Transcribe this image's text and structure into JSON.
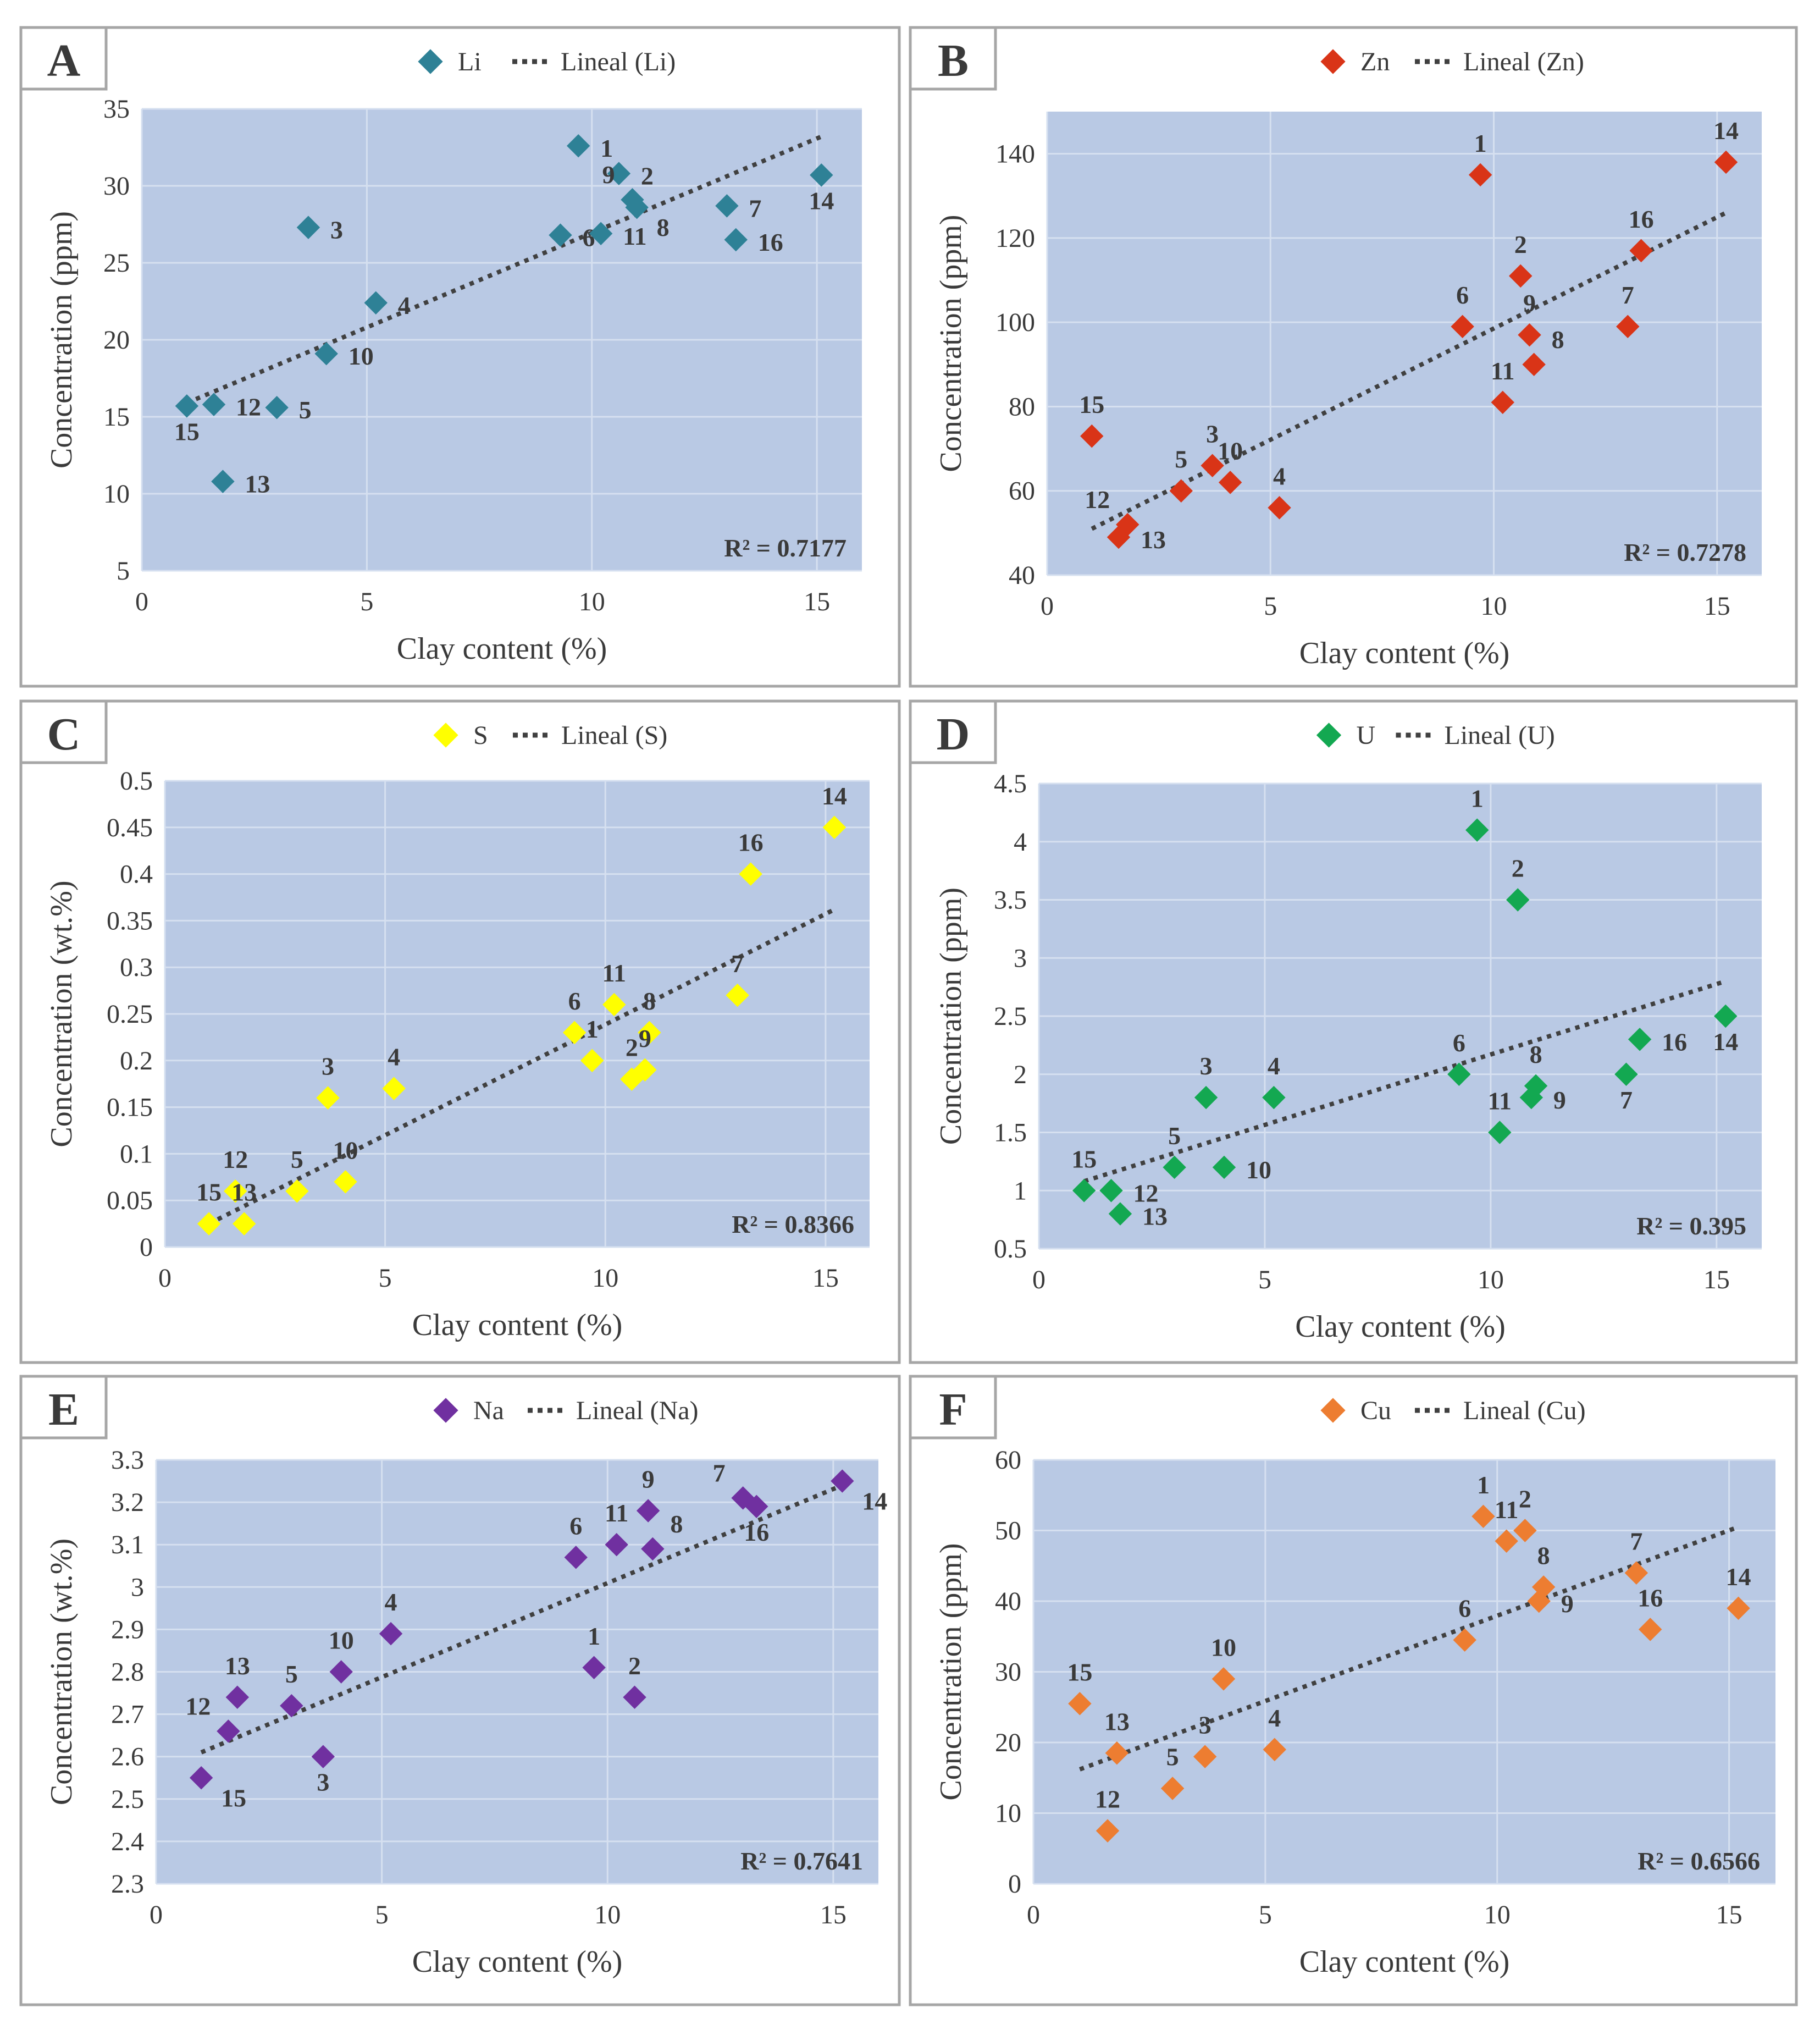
{
  "figure": {
    "xlabel": "Clay content (%)",
    "colors": {
      "plot_bg": "#b9c9e4",
      "grid": "#d6e0f0",
      "frame": "#a6a6a6",
      "trend": "#404040",
      "text": "#3a3a3a"
    }
  },
  "chart_data": [
    {
      "type": "scatter",
      "panel": "A",
      "legend": "Li",
      "trend_legend": "Lineal (Li)",
      "color": "#2e8196",
      "ylabel": "Concentration (ppm)",
      "xlim": [
        0,
        16
      ],
      "ylim": [
        5,
        35
      ],
      "xticks": [
        "0",
        "5",
        "10",
        "15"
      ],
      "yticks": [
        "5",
        "10",
        "15",
        "20",
        "25",
        "30",
        "35"
      ],
      "r2": "R² = 0.7177",
      "trend": {
        "x": [
          1,
          15.1
        ],
        "y": [
          15.9,
          33.2
        ]
      },
      "points": [
        {
          "label": "1",
          "x": 9.7,
          "y": 32.6,
          "pos": "r"
        },
        {
          "label": "2",
          "x": 10.6,
          "y": 30.8,
          "pos": "r"
        },
        {
          "label": "3",
          "x": 3.7,
          "y": 27.3,
          "pos": "r"
        },
        {
          "label": "4",
          "x": 5.2,
          "y": 22.4,
          "pos": "r"
        },
        {
          "label": "5",
          "x": 3.0,
          "y": 15.6,
          "pos": "r"
        },
        {
          "label": "6",
          "x": 9.3,
          "y": 26.8,
          "pos": "r"
        },
        {
          "label": "7",
          "x": 13.0,
          "y": 28.7,
          "pos": "r"
        },
        {
          "label": "8",
          "x": 11.0,
          "y": 28.6,
          "pos": "br"
        },
        {
          "label": "9",
          "x": 10.9,
          "y": 29.1,
          "pos": "tl"
        },
        {
          "label": "10",
          "x": 4.1,
          "y": 19.1,
          "pos": "r"
        },
        {
          "label": "11",
          "x": 10.2,
          "y": 26.9,
          "pos": "r"
        },
        {
          "label": "12",
          "x": 1.6,
          "y": 15.8,
          "pos": "r"
        },
        {
          "label": "13",
          "x": 1.8,
          "y": 10.8,
          "pos": "r"
        },
        {
          "label": "14",
          "x": 15.1,
          "y": 30.7,
          "pos": "b"
        },
        {
          "label": "15",
          "x": 1.0,
          "y": 15.7,
          "pos": "b"
        },
        {
          "label": "16",
          "x": 13.2,
          "y": 26.5,
          "pos": "r"
        }
      ]
    },
    {
      "type": "scatter",
      "panel": "B",
      "legend": "Zn",
      "trend_legend": "Lineal (Zn)",
      "color": "#d93417",
      "ylabel": "Concentration (ppm)",
      "xlim": [
        0,
        16
      ],
      "ylim": [
        40,
        150
      ],
      "xticks": [
        "0",
        "5",
        "10",
        "15"
      ],
      "yticks": [
        "40",
        "60",
        "80",
        "100",
        "120",
        "140"
      ],
      "r2": "R² = 0.7278",
      "trend": {
        "x": [
          1,
          15.2
        ],
        "y": [
          51,
          126
        ]
      },
      "points": [
        {
          "label": "1",
          "x": 9.7,
          "y": 135,
          "pos": "t"
        },
        {
          "label": "2",
          "x": 10.6,
          "y": 111,
          "pos": "t"
        },
        {
          "label": "3",
          "x": 3.7,
          "y": 66,
          "pos": "t"
        },
        {
          "label": "4",
          "x": 5.2,
          "y": 56,
          "pos": "t"
        },
        {
          "label": "5",
          "x": 3.0,
          "y": 60,
          "pos": "t"
        },
        {
          "label": "6",
          "x": 9.3,
          "y": 99,
          "pos": "t"
        },
        {
          "label": "7",
          "x": 13.0,
          "y": 99,
          "pos": "t"
        },
        {
          "label": "8",
          "x": 10.9,
          "y": 90,
          "pos": "tr"
        },
        {
          "label": "9",
          "x": 10.8,
          "y": 97,
          "pos": "t"
        },
        {
          "label": "10",
          "x": 4.1,
          "y": 62,
          "pos": "t"
        },
        {
          "label": "11",
          "x": 10.2,
          "y": 81,
          "pos": "t"
        },
        {
          "label": "12",
          "x": 1.8,
          "y": 52,
          "pos": "tl"
        },
        {
          "label": "13",
          "x": 1.6,
          "y": 49,
          "pos": "r"
        },
        {
          "label": "14",
          "x": 15.2,
          "y": 138,
          "pos": "t"
        },
        {
          "label": "15",
          "x": 1.0,
          "y": 73,
          "pos": "t"
        },
        {
          "label": "16",
          "x": 13.3,
          "y": 117,
          "pos": "t"
        }
      ]
    },
    {
      "type": "scatter",
      "panel": "C",
      "legend": "S",
      "trend_legend": "Lineal (S)",
      "color": "#ffff00",
      "ylabel": "Concentration (wt.%)",
      "xlim": [
        0,
        16
      ],
      "ylim": [
        0,
        0.5
      ],
      "xticks": [
        "0",
        "5",
        "10",
        "15"
      ],
      "yticks": [
        "0",
        "0.05",
        "0.1",
        "0.15",
        "0.2",
        "0.25",
        "0.3",
        "0.35",
        "0.4",
        "0.45",
        "0.5"
      ],
      "r2": "R² = 0.8366",
      "trend": {
        "x": [
          1,
          15.2
        ],
        "y": [
          0.025,
          0.362
        ]
      },
      "points": [
        {
          "label": "1",
          "x": 9.7,
          "y": 0.2,
          "pos": "t"
        },
        {
          "label": "2",
          "x": 10.6,
          "y": 0.18,
          "pos": "t"
        },
        {
          "label": "3",
          "x": 3.7,
          "y": 0.16,
          "pos": "t"
        },
        {
          "label": "4",
          "x": 5.2,
          "y": 0.17,
          "pos": "t"
        },
        {
          "label": "5",
          "x": 3.0,
          "y": 0.06,
          "pos": "t"
        },
        {
          "label": "6",
          "x": 9.3,
          "y": 0.23,
          "pos": "t"
        },
        {
          "label": "7",
          "x": 13.0,
          "y": 0.27,
          "pos": "t"
        },
        {
          "label": "8",
          "x": 11.0,
          "y": 0.23,
          "pos": "t"
        },
        {
          "label": "9",
          "x": 10.9,
          "y": 0.19,
          "pos": "t"
        },
        {
          "label": "10",
          "x": 4.1,
          "y": 0.07,
          "pos": "t"
        },
        {
          "label": "11",
          "x": 10.2,
          "y": 0.26,
          "pos": "t"
        },
        {
          "label": "12",
          "x": 1.6,
          "y": 0.06,
          "pos": "t"
        },
        {
          "label": "13",
          "x": 1.8,
          "y": 0.025,
          "pos": "t"
        },
        {
          "label": "14",
          "x": 15.2,
          "y": 0.45,
          "pos": "t"
        },
        {
          "label": "15",
          "x": 1.0,
          "y": 0.025,
          "pos": "t"
        },
        {
          "label": "16",
          "x": 13.3,
          "y": 0.4,
          "pos": "t"
        }
      ]
    },
    {
      "type": "scatter",
      "panel": "D",
      "legend": "U",
      "trend_legend": "Lineal (U)",
      "color": "#13a851",
      "ylabel": "Concentration (ppm)",
      "xlim": [
        0,
        16
      ],
      "ylim": [
        0.5,
        4.5
      ],
      "xticks": [
        "0",
        "5",
        "10",
        "15"
      ],
      "yticks": [
        "0.5",
        "1",
        "1.5",
        "2",
        "2.5",
        "3",
        "3.5",
        "4",
        "4.5"
      ],
      "r2": "R² = 0.395",
      "trend": {
        "x": [
          1,
          15.2
        ],
        "y": [
          1.08,
          2.8
        ]
      },
      "points": [
        {
          "label": "1",
          "x": 9.7,
          "y": 4.1,
          "pos": "t"
        },
        {
          "label": "2",
          "x": 10.6,
          "y": 3.5,
          "pos": "t"
        },
        {
          "label": "3",
          "x": 3.7,
          "y": 1.8,
          "pos": "t"
        },
        {
          "label": "4",
          "x": 5.2,
          "y": 1.8,
          "pos": "t"
        },
        {
          "label": "5",
          "x": 3.0,
          "y": 1.2,
          "pos": "t"
        },
        {
          "label": "6",
          "x": 9.3,
          "y": 2.0,
          "pos": "t"
        },
        {
          "label": "7",
          "x": 13.0,
          "y": 2.0,
          "pos": "b"
        },
        {
          "label": "8",
          "x": 11.0,
          "y": 1.9,
          "pos": "t"
        },
        {
          "label": "9",
          "x": 10.9,
          "y": 1.8,
          "pos": "r"
        },
        {
          "label": "10",
          "x": 4.1,
          "y": 1.2,
          "pos": "r"
        },
        {
          "label": "11",
          "x": 10.2,
          "y": 1.5,
          "pos": "t"
        },
        {
          "label": "12",
          "x": 1.6,
          "y": 1.0,
          "pos": "r"
        },
        {
          "label": "13",
          "x": 1.8,
          "y": 0.8,
          "pos": "r"
        },
        {
          "label": "14",
          "x": 15.2,
          "y": 2.5,
          "pos": "b"
        },
        {
          "label": "15",
          "x": 1.0,
          "y": 1.0,
          "pos": "t"
        },
        {
          "label": "16",
          "x": 13.3,
          "y": 2.3,
          "pos": "r"
        }
      ]
    },
    {
      "type": "scatter",
      "panel": "E",
      "legend": "Na",
      "trend_legend": "Lineal (Na)",
      "color": "#7030a0",
      "ylabel": "Concentration (wt.%)",
      "xlim": [
        0,
        16
      ],
      "ylim": [
        2.3,
        3.3
      ],
      "xticks": [
        "0",
        "5",
        "10",
        "15"
      ],
      "yticks": [
        "2.3",
        "2.4",
        "2.5",
        "2.6",
        "2.7",
        "2.8",
        "2.9",
        "3",
        "3.1",
        "3.2",
        "3.3"
      ],
      "r2": "R² = 0.7641",
      "trend": {
        "x": [
          1,
          15.2
        ],
        "y": [
          2.61,
          3.24
        ]
      },
      "points": [
        {
          "label": "1",
          "x": 9.7,
          "y": 2.81,
          "pos": "t"
        },
        {
          "label": "2",
          "x": 10.6,
          "y": 2.74,
          "pos": "t"
        },
        {
          "label": "3",
          "x": 3.7,
          "y": 2.6,
          "pos": "b"
        },
        {
          "label": "4",
          "x": 5.2,
          "y": 2.89,
          "pos": "t"
        },
        {
          "label": "5",
          "x": 3.0,
          "y": 2.72,
          "pos": "t"
        },
        {
          "label": "6",
          "x": 9.3,
          "y": 3.07,
          "pos": "t"
        },
        {
          "label": "7",
          "x": 13.0,
          "y": 3.21,
          "pos": "tl"
        },
        {
          "label": "8",
          "x": 11.0,
          "y": 3.09,
          "pos": "tr"
        },
        {
          "label": "9",
          "x": 10.9,
          "y": 3.18,
          "pos": "t"
        },
        {
          "label": "10",
          "x": 4.1,
          "y": 2.8,
          "pos": "t"
        },
        {
          "label": "11",
          "x": 10.2,
          "y": 3.1,
          "pos": "t"
        },
        {
          "label": "12",
          "x": 1.6,
          "y": 2.66,
          "pos": "tl"
        },
        {
          "label": "13",
          "x": 1.8,
          "y": 2.74,
          "pos": "t"
        },
        {
          "label": "14",
          "x": 15.2,
          "y": 3.25,
          "pos": "br"
        },
        {
          "label": "15",
          "x": 1.0,
          "y": 2.55,
          "pos": "br"
        },
        {
          "label": "16",
          "x": 13.3,
          "y": 3.19,
          "pos": "b"
        }
      ]
    },
    {
      "type": "scatter",
      "panel": "F",
      "legend": "Cu",
      "trend_legend": "Lineal (Cu)",
      "color": "#ed7d31",
      "ylabel": "Concentration (ppm)",
      "xlim": [
        0,
        16
      ],
      "ylim": [
        0,
        60
      ],
      "xticks": [
        "0",
        "5",
        "10",
        "15"
      ],
      "yticks": [
        "0",
        "10",
        "20",
        "30",
        "40",
        "50",
        "60"
      ],
      "r2": "R² = 0.6566",
      "trend": {
        "x": [
          1,
          15.2
        ],
        "y": [
          16.2,
          50.5
        ]
      },
      "points": [
        {
          "label": "1",
          "x": 9.7,
          "y": 52,
          "pos": "t"
        },
        {
          "label": "2",
          "x": 10.6,
          "y": 50,
          "pos": "t"
        },
        {
          "label": "3",
          "x": 3.7,
          "y": 18,
          "pos": "t"
        },
        {
          "label": "4",
          "x": 5.2,
          "y": 19,
          "pos": "t"
        },
        {
          "label": "5",
          "x": 3.0,
          "y": 13.5,
          "pos": "t"
        },
        {
          "label": "6",
          "x": 9.3,
          "y": 34.5,
          "pos": "t"
        },
        {
          "label": "7",
          "x": 13.0,
          "y": 44,
          "pos": "t"
        },
        {
          "label": "8",
          "x": 11.0,
          "y": 42,
          "pos": "t"
        },
        {
          "label": "9",
          "x": 10.9,
          "y": 40,
          "pos": "r"
        },
        {
          "label": "10",
          "x": 4.1,
          "y": 29,
          "pos": "t"
        },
        {
          "label": "11",
          "x": 10.2,
          "y": 48.5,
          "pos": "t"
        },
        {
          "label": "12",
          "x": 1.6,
          "y": 7.5,
          "pos": "t"
        },
        {
          "label": "13",
          "x": 1.8,
          "y": 18.5,
          "pos": "t"
        },
        {
          "label": "14",
          "x": 15.2,
          "y": 39,
          "pos": "t"
        },
        {
          "label": "15",
          "x": 1.0,
          "y": 25.5,
          "pos": "t"
        },
        {
          "label": "16",
          "x": 13.3,
          "y": 36,
          "pos": "t"
        }
      ]
    }
  ]
}
